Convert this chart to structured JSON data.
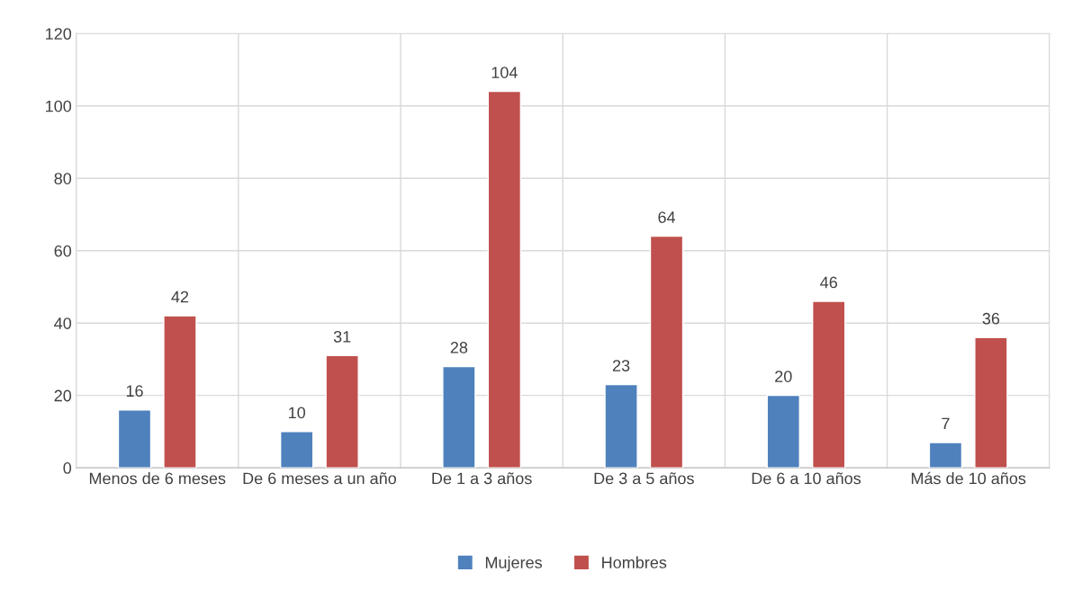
{
  "chart_data": {
    "type": "bar",
    "categories": [
      "Menos de 6 meses",
      "De 6 meses a un año",
      "De 1 a 3 años",
      "De 3 a 5 años",
      "De 6 a 10 años",
      "Más de 10 años"
    ],
    "series": [
      {
        "name": "Mujeres",
        "color": "#4f81bd",
        "values": [
          16,
          10,
          28,
          23,
          20,
          7
        ]
      },
      {
        "name": "Hombres",
        "color": "#c0504d",
        "values": [
          42,
          31,
          104,
          64,
          46,
          36
        ]
      }
    ],
    "ylim": [
      0,
      120
    ],
    "yticks": [
      0,
      20,
      40,
      60,
      80,
      100,
      120
    ],
    "grid": true,
    "legend": "bottom",
    "data_labels": true
  }
}
